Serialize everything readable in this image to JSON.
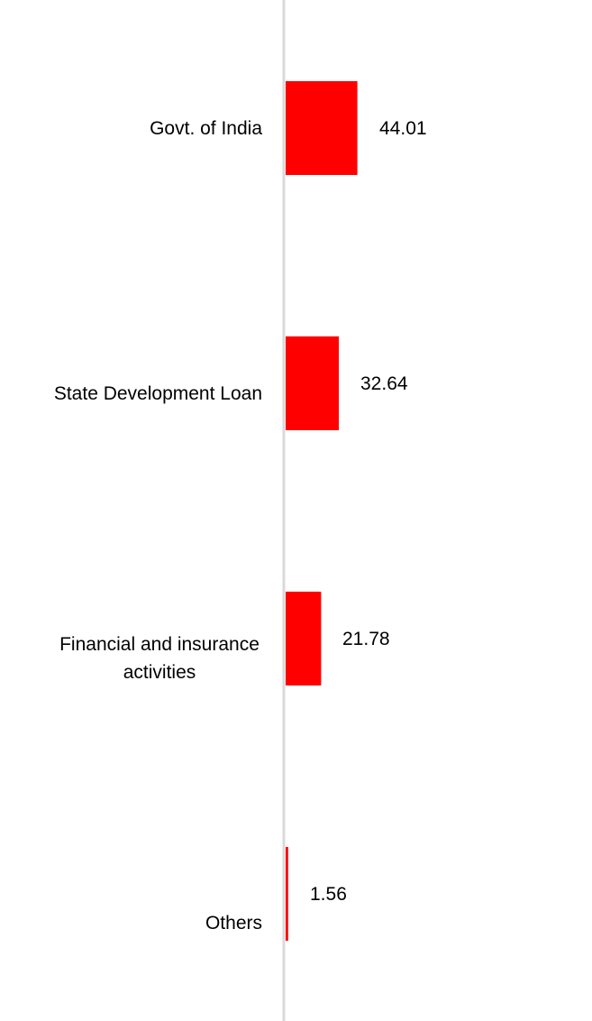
{
  "chart_data": {
    "type": "bar",
    "orientation": "horizontal",
    "title": "",
    "xlabel": "",
    "ylabel": "",
    "categories": [
      "Govt. of India",
      "State Development Loan",
      "Financial and insurance activities",
      "Others"
    ],
    "values": [
      44.01,
      32.64,
      21.78,
      1.56
    ],
    "value_labels": [
      "44.01",
      "32.64",
      "21.78",
      "1.56"
    ],
    "xlim": [
      0,
      188
    ],
    "grid": false,
    "legend": "none",
    "colors": {
      "bar": "#ff0000",
      "axis": "#d9d9d9",
      "text": "#000000"
    }
  }
}
